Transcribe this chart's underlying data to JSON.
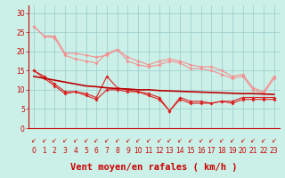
{
  "background_color": "#caf0e8",
  "grid_color": "#99cccc",
  "xlabel": "Vent moyen/en rafales ( km/h )",
  "ylim": [
    0,
    32
  ],
  "yticks": [
    0,
    5,
    10,
    15,
    20,
    25,
    30
  ],
  "x_labels": [
    "0",
    "1",
    "2",
    "3",
    "4",
    "5",
    "6",
    "7",
    "8",
    "9",
    "10",
    "11",
    "12",
    "13",
    "14",
    "15",
    "16",
    "17",
    "18",
    "19",
    "20",
    "21",
    "22",
    "23"
  ],
  "line1_y": [
    26.5,
    24.0,
    24.0,
    19.5,
    19.5,
    19.0,
    18.5,
    19.0,
    20.5,
    18.5,
    17.5,
    16.5,
    17.5,
    18.0,
    17.5,
    16.5,
    16.0,
    16.0,
    15.0,
    13.5,
    14.0,
    10.5,
    9.5,
    13.5
  ],
  "line2_y": [
    26.5,
    24.0,
    23.5,
    19.0,
    18.0,
    17.5,
    17.0,
    19.5,
    20.5,
    17.5,
    16.5,
    16.0,
    16.5,
    17.5,
    17.0,
    15.5,
    15.5,
    15.0,
    14.0,
    13.0,
    13.5,
    10.0,
    9.0,
    13.0
  ],
  "line3_y": [
    15.0,
    13.5,
    11.5,
    9.5,
    9.5,
    9.0,
    8.0,
    13.5,
    10.5,
    10.0,
    9.5,
    9.0,
    8.0,
    4.5,
    8.0,
    7.0,
    7.0,
    6.5,
    7.0,
    7.0,
    8.0,
    8.0,
    8.0,
    8.0
  ],
  "line4_y": [
    15.0,
    13.0,
    11.0,
    9.0,
    9.5,
    8.5,
    7.5,
    10.0,
    10.0,
    9.5,
    9.5,
    8.5,
    7.5,
    4.5,
    7.5,
    6.5,
    6.5,
    6.5,
    7.0,
    6.5,
    7.5,
    7.5,
    7.5,
    7.5
  ],
  "trend_y": [
    13.5,
    13.0,
    12.5,
    12.0,
    11.5,
    11.0,
    10.8,
    10.5,
    10.3,
    10.2,
    10.0,
    10.0,
    9.8,
    9.7,
    9.6,
    9.5,
    9.4,
    9.3,
    9.2,
    9.1,
    9.0,
    9.0,
    8.9,
    8.8
  ],
  "light_pink": "#f49090",
  "medium_red": "#dd2020",
  "dark_red": "#bb0000",
  "tick_color": "#cc0000",
  "xlabel_color": "#cc0000",
  "tick_fontsize": 5.5,
  "xlabel_fontsize": 7.5,
  "arrow_char": "↙"
}
